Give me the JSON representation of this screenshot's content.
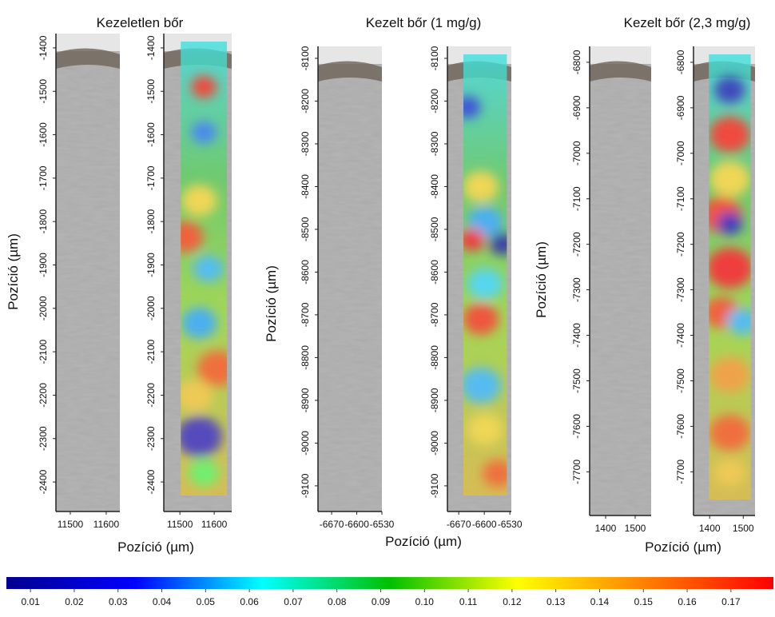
{
  "chart_data": [
    {
      "type": "image-pair",
      "title": "Kezeletlen bőr",
      "xlabel": "Pozíció (µm)",
      "ylabel": "Pozíció (µm)",
      "ylim": [
        -1367,
        -2468
      ],
      "yticks": [
        -1400,
        -1500,
        -1600,
        -1700,
        -1800,
        -1900,
        -2000,
        -2100,
        -2200,
        -2300,
        -2400
      ],
      "images": [
        {
          "xlim": [
            11460,
            11638
          ],
          "xticks": [
            11500,
            11600
          ]
        },
        {
          "xlim": [
            11453,
            11651
          ],
          "xticks": [
            11500,
            11600
          ]
        }
      ]
    },
    {
      "type": "image-pair",
      "title": "Kezelt bőr (1 mg/g)",
      "xlabel": "Pozíció (µm)",
      "ylabel": "Pozíció (µm)",
      "ylim": [
        -8072,
        -9160
      ],
      "yticks": [
        -8100,
        -8200,
        -8300,
        -8400,
        -8500,
        -8600,
        -8700,
        -8800,
        -8900,
        -9000,
        -9100
      ],
      "images": [
        {
          "xlim": [
            -6708,
            -6530
          ],
          "xticks": [
            -6670,
            -6600,
            -6530
          ]
        },
        {
          "xlim": [
            -6701,
            -6526
          ],
          "xticks": [
            -6670,
            -6600,
            -6530
          ]
        }
      ]
    },
    {
      "type": "image-pair",
      "title": "Kezelt bőr (2,3 mg/g)",
      "xlabel": "Pozíció (µm)",
      "ylabel": "Pozíció (µm)",
      "ylim": [
        -6765,
        -7796
      ],
      "yticks": [
        -6800,
        -6900,
        -7000,
        -7100,
        -7200,
        -7300,
        -7400,
        -7500,
        -7600,
        -7700
      ],
      "images": [
        {
          "xlim": [
            1346,
            1554
          ],
          "xticks": [
            1400,
            1500
          ]
        },
        {
          "xlim": [
            1352,
            1535
          ],
          "xticks": [
            1400,
            1500
          ]
        }
      ]
    },
    {
      "type": "colorbar",
      "colormap": [
        "#00008f",
        "#0000ff",
        "#00ffff",
        "#00c000",
        "#ffff00",
        "#ff8000",
        "#ff0000"
      ],
      "xlim": [
        0.0045,
        0.1797
      ],
      "xticks": [
        0.01,
        0.02,
        0.03,
        0.04,
        0.05,
        0.06,
        0.07,
        0.08,
        0.09,
        {
          "value": 0.1,
          "label": "0.10"
        },
        0.11,
        0.12,
        0.13,
        0.14,
        0.15,
        0.16,
        0.17
      ]
    }
  ]
}
